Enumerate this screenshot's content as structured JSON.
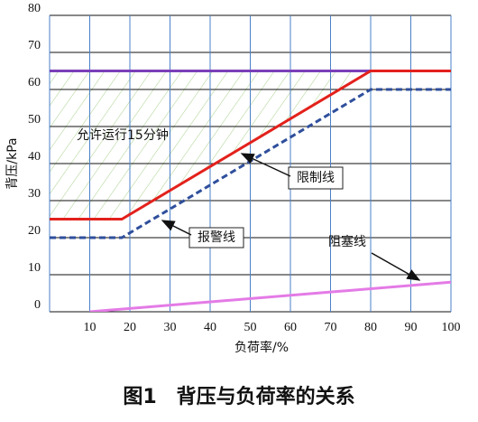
{
  "chart_data": {
    "type": "line",
    "xlabel": "负荷率/%",
    "ylabel": "背压/kPa",
    "caption": "图1　背压与负荷率的关系",
    "region_label": "允许运行15分钟",
    "xlim": [
      0,
      100
    ],
    "xticks": [
      10,
      20,
      30,
      40,
      50,
      60,
      70,
      80,
      90,
      100
    ],
    "ylim": [
      0,
      80
    ],
    "yticks": [
      0,
      10,
      20,
      30,
      40,
      50,
      60,
      70,
      80
    ],
    "grid": true,
    "series": [
      {
        "color": "#7a3fb8",
        "style": "solid",
        "x": [
          0,
          100
        ],
        "values": [
          65,
          65
        ]
      },
      {
        "name": "限制线",
        "color": "#e3211c",
        "style": "solid",
        "x": [
          0,
          18,
          80,
          100
        ],
        "values": [
          25,
          25,
          65,
          65
        ]
      },
      {
        "name": "报警线",
        "color": "#2f4f9c",
        "style": "dashed",
        "x": [
          0,
          18,
          80,
          100
        ],
        "values": [
          20,
          20,
          60,
          60
        ]
      },
      {
        "name": "阻塞线",
        "color": "#e47be6",
        "style": "solid",
        "x": [
          10,
          100
        ],
        "values": [
          0,
          8
        ]
      }
    ]
  }
}
